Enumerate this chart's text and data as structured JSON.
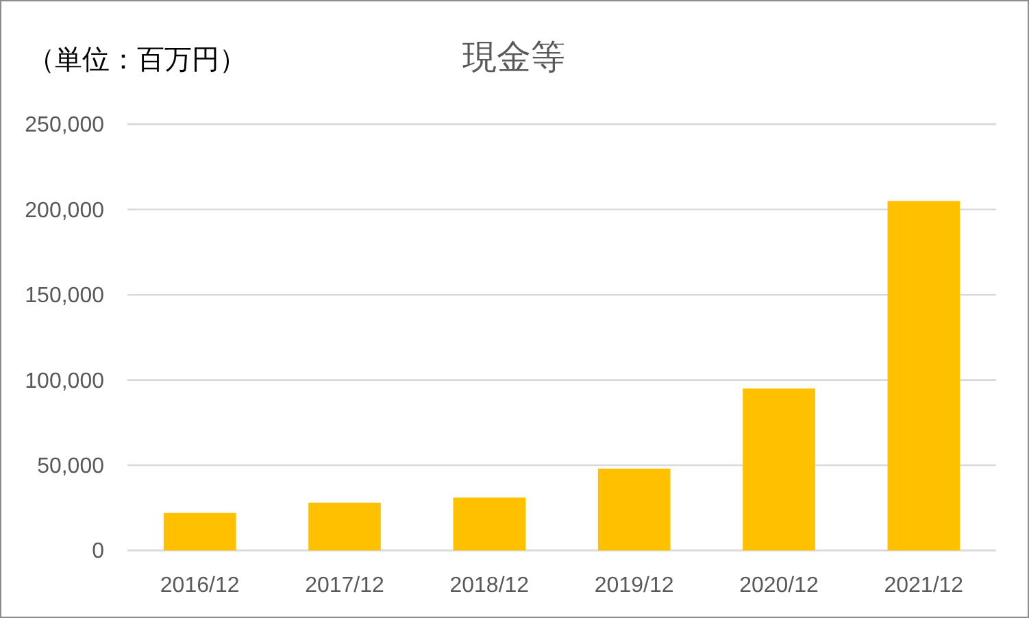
{
  "chart_data": {
    "type": "bar",
    "title": "現金等",
    "annotations": [
      "（単位：百万円）"
    ],
    "categories": [
      "2016/12",
      "2017/12",
      "2018/12",
      "2019/12",
      "2020/12",
      "2021/12"
    ],
    "values": [
      22000,
      28000,
      31000,
      48000,
      95000,
      205000
    ],
    "color": "#ffc000",
    "ylim": [
      0,
      250000
    ],
    "yticks": [
      {
        "value": 0,
        "label": "0"
      },
      {
        "value": 50000,
        "label": "50,000"
      },
      {
        "value": 100000,
        "label": "100,000"
      },
      {
        "value": 150000,
        "label": "150,000"
      },
      {
        "value": 200000,
        "label": "200,000"
      },
      {
        "value": 250000,
        "label": "250,000"
      }
    ],
    "grid": "y"
  }
}
